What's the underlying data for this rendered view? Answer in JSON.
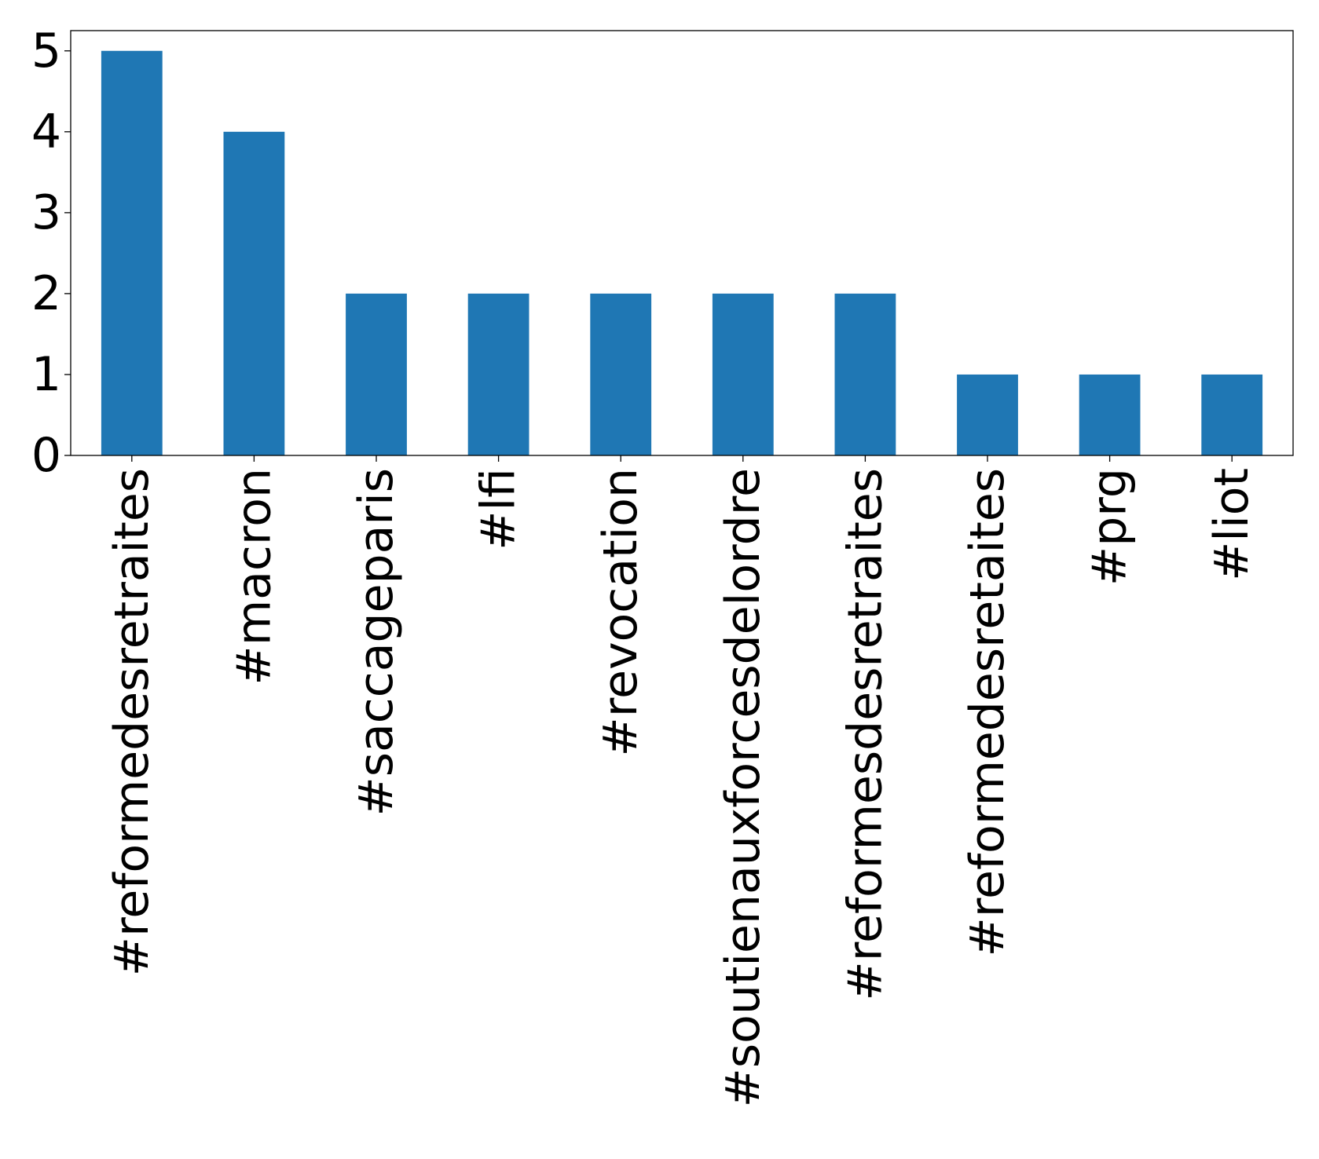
{
  "chart_data": {
    "type": "bar",
    "title": "",
    "xlabel": "",
    "ylabel": "",
    "categories": [
      "#reformedesretraites",
      "#macron",
      "#saccageparis",
      "#lfi",
      "#revocation",
      "#soutienauxforcesdelordre",
      "#reformesdesretraites",
      "#reformedesretaites",
      "#prg",
      "#liot"
    ],
    "values": [
      5,
      4,
      2,
      2,
      2,
      2,
      2,
      1,
      1,
      1
    ],
    "ylim": [
      0,
      5.25
    ],
    "yticks": [
      0,
      1,
      2,
      3,
      4,
      5
    ],
    "bar_color": "#1f77b4",
    "grid": false,
    "legend": "none"
  }
}
